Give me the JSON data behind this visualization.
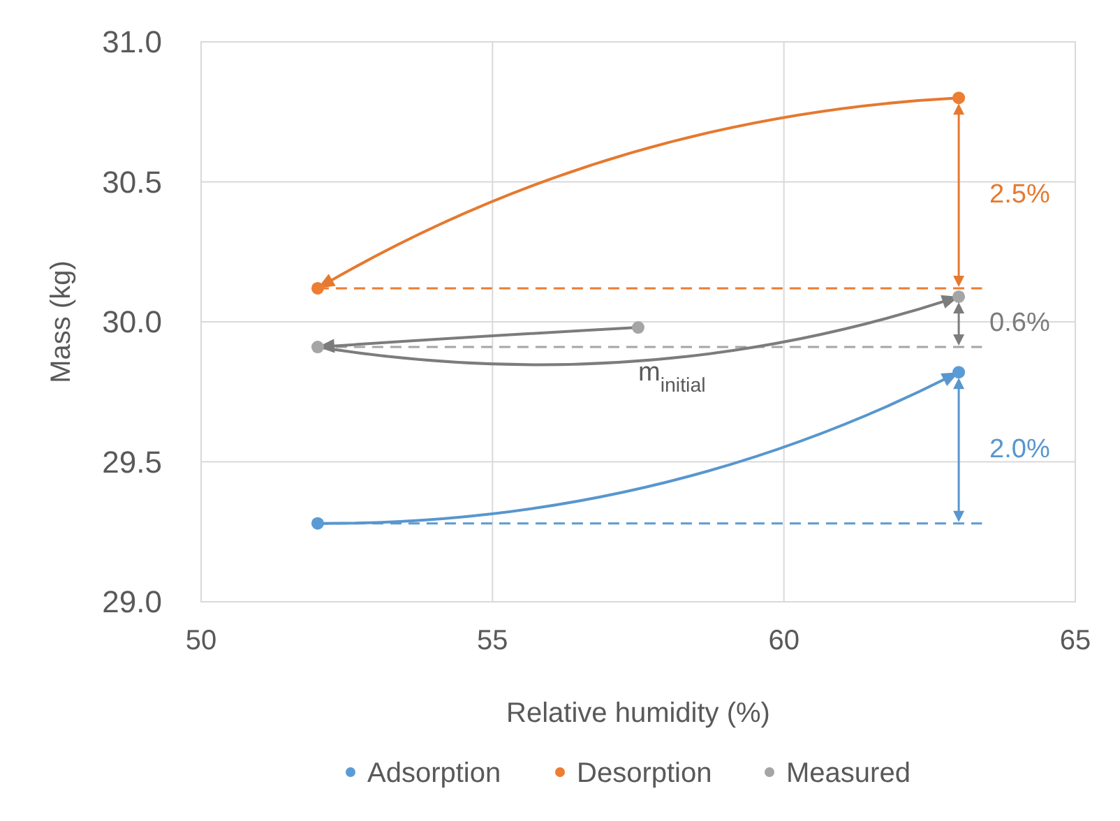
{
  "chart_data": {
    "type": "scatter",
    "xlabel": "Relative humidity (%)",
    "ylabel": "Mass (kg)",
    "xlim": [
      50,
      65
    ],
    "xticks": [
      50,
      55,
      60,
      65
    ],
    "ylim": [
      29,
      31
    ],
    "yticks": [
      {
        "value": 29,
        "label": "29.0"
      },
      {
        "value": 29.5,
        "label": "29.5"
      },
      {
        "value": 30,
        "label": "30.0"
      },
      {
        "value": 30.5,
        "label": "30.5"
      },
      {
        "value": 31,
        "label": "31.0"
      }
    ],
    "grid": true,
    "legend": "bottom",
    "marker": "circle",
    "series": [
      {
        "name": "Adsorption",
        "color": "#5b9bd5",
        "x": [
          52,
          63
        ],
        "values": [
          29.28,
          29.82
        ]
      },
      {
        "name": "Desorption",
        "color": "#ed7d31",
        "x": [
          63,
          52
        ],
        "values": [
          30.8,
          30.12
        ]
      },
      {
        "name": "Measured",
        "color": "#a5a5a5",
        "x": [
          57.5,
          52,
          63
        ],
        "values": [
          29.98,
          29.91,
          30.09
        ]
      },
      {
        "type": "line",
        "color": "#5b9bd5",
        "x": [
          52,
          63.4
        ],
        "values": [
          29.28,
          29.28
        ],
        "line_style": "dashed",
        "marker": "none"
      },
      {
        "type": "line",
        "color": "#ed7d31",
        "x": [
          52,
          63.4
        ],
        "values": [
          30.12,
          30.12
        ],
        "line_style": "dashed",
        "marker": "none"
      },
      {
        "type": "line",
        "color": "#a5a5a5",
        "x": [
          52,
          63.4
        ],
        "values": [
          29.91,
          29.91
        ],
        "line_style": "dashed",
        "marker": "none"
      }
    ],
    "annotations": [
      "2.0%",
      "2.5%",
      "0.6%",
      {
        "text": "m$_{initial}$",
        "x": 57.5,
        "y": 29.91
      }
    ]
  }
}
